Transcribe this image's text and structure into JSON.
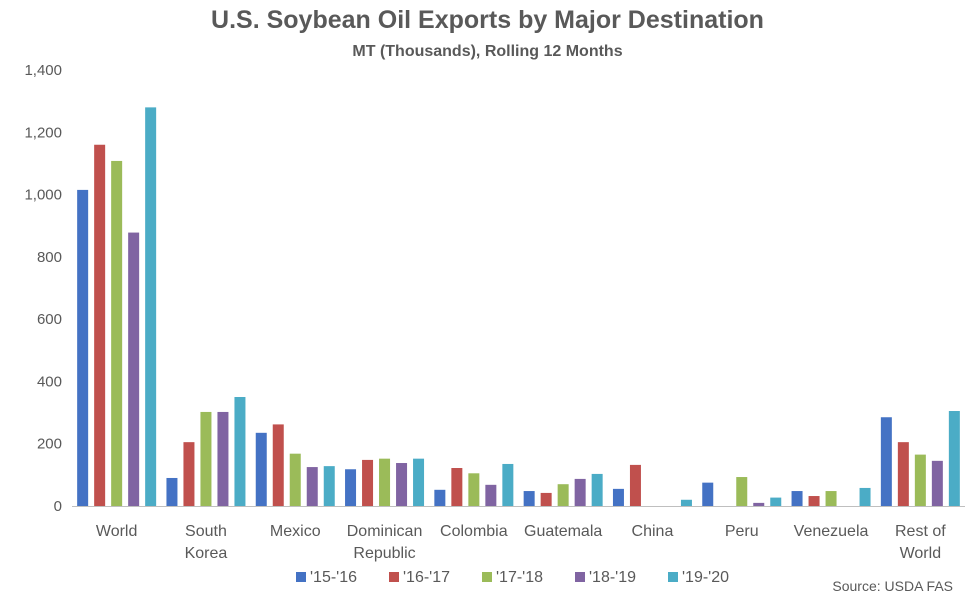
{
  "chart_data": {
    "type": "bar",
    "title": "U.S. Soybean Oil Exports by Major Destination",
    "subtitle": "MT (Thousands), Rolling 12 Months",
    "categories": [
      [
        "World"
      ],
      [
        "South",
        "Korea"
      ],
      [
        "Mexico"
      ],
      [
        "Dominican",
        "Republic"
      ],
      [
        "Colombia"
      ],
      [
        "Guatemala"
      ],
      [
        "China"
      ],
      [
        "Peru"
      ],
      [
        "Venezuela"
      ],
      [
        "Rest of",
        "World"
      ]
    ],
    "series": [
      {
        "name": "'15-'16",
        "color": "#4472C4",
        "values": [
          1015,
          90,
          235,
          118,
          52,
          48,
          55,
          75,
          48,
          285
        ]
      },
      {
        "name": "'16-'17",
        "color": "#C0504D",
        "values": [
          1160,
          205,
          262,
          148,
          122,
          42,
          132,
          0,
          32,
          205
        ]
      },
      {
        "name": "'17-'18",
        "color": "#9BBB59",
        "values": [
          1108,
          302,
          168,
          152,
          105,
          70,
          0,
          93,
          48,
          165
        ]
      },
      {
        "name": "'18-'19",
        "color": "#8064A2",
        "values": [
          878,
          302,
          125,
          138,
          68,
          87,
          0,
          10,
          0,
          145
        ]
      },
      {
        "name": "'19-'20",
        "color": "#4BACC6",
        "values": [
          1280,
          350,
          128,
          152,
          135,
          103,
          20,
          27,
          58,
          305
        ]
      }
    ],
    "ylim": [
      0,
      1400
    ],
    "yticks": [
      0,
      200,
      400,
      600,
      800,
      1000,
      1200,
      1400
    ],
    "ytick_labels": [
      "0",
      "200",
      "400",
      "600",
      "800",
      "1,000",
      "1,200",
      "1,400"
    ],
    "grid": false,
    "legend_position": "bottom",
    "source": "Source: USDA FAS"
  }
}
